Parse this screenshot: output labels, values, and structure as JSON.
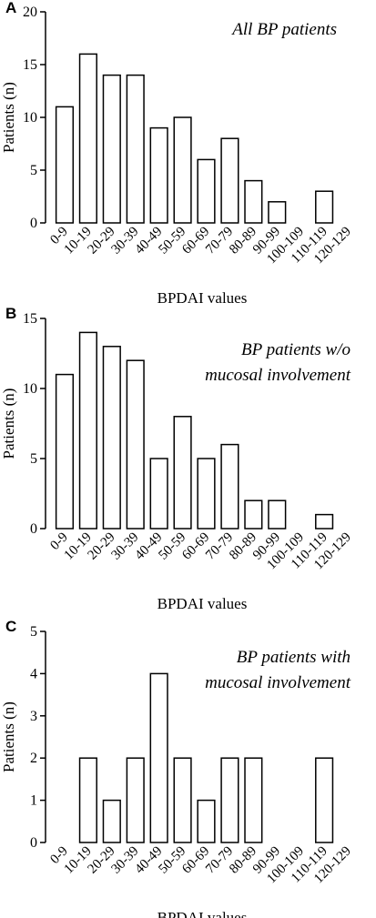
{
  "chart_data": [
    {
      "type": "bar",
      "panel": "A",
      "annotation": [
        "All BP patients"
      ],
      "xlabel": "BPDAI values",
      "ylabel": "Patients (n)",
      "categories": [
        "0-9",
        "10-19",
        "20-29",
        "30-39",
        "40-49",
        "50-59",
        "60-69",
        "70-79",
        "80-89",
        "90-99",
        "100-109",
        "110-119",
        "120-129"
      ],
      "values": [
        11,
        16,
        14,
        14,
        9,
        10,
        6,
        8,
        4,
        2,
        0,
        3,
        0
      ],
      "ylim": [
        0,
        20
      ],
      "yticks": [
        0,
        5,
        10,
        15,
        20
      ]
    },
    {
      "type": "bar",
      "panel": "B",
      "annotation": [
        "BP patients w/o",
        "mucosal involvement"
      ],
      "xlabel": "BPDAI values",
      "ylabel": "Patients (n)",
      "categories": [
        "0-9",
        "10-19",
        "20-29",
        "30-39",
        "40-49",
        "50-59",
        "60-69",
        "70-79",
        "80-89",
        "90-99",
        "100-109",
        "110-119",
        "120-129"
      ],
      "values": [
        11,
        14,
        13,
        12,
        5,
        8,
        5,
        6,
        2,
        2,
        0,
        1,
        0
      ],
      "ylim": [
        0,
        15
      ],
      "yticks": [
        0,
        5,
        10,
        15
      ]
    },
    {
      "type": "bar",
      "panel": "C",
      "annotation": [
        "BP patients with",
        "mucosal involvement"
      ],
      "xlabel": "BPDAI values",
      "ylabel": "Patients (n)",
      "categories": [
        "0-9",
        "10-19",
        "20-29",
        "30-39",
        "40-49",
        "50-59",
        "60-69",
        "70-79",
        "80-89",
        "90-99",
        "100-109",
        "110-119",
        "120-129"
      ],
      "values": [
        0,
        2,
        1,
        2,
        4,
        2,
        1,
        2,
        2,
        0,
        0,
        2,
        0
      ],
      "ylim": [
        0,
        5
      ],
      "yticks": [
        0,
        1,
        2,
        3,
        4,
        5
      ]
    }
  ]
}
